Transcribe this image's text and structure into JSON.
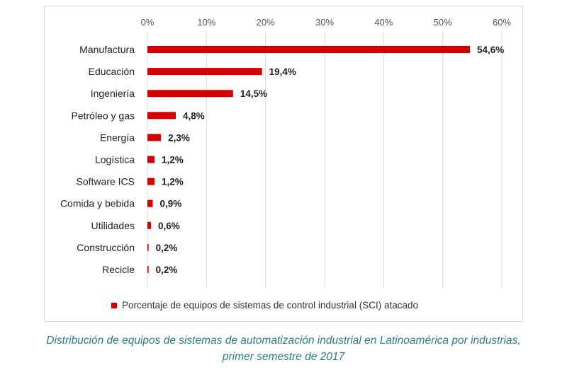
{
  "chart_data": {
    "type": "bar",
    "orientation": "horizontal",
    "categories": [
      "Manufactura",
      "Educación",
      "Ingeniería",
      "Petróleo y gas",
      "Energía",
      "Logística",
      "Software ICS",
      "Comida y bebida",
      "Utilidades",
      "Construcción",
      "Recicle"
    ],
    "values": [
      54.6,
      19.4,
      14.5,
      4.8,
      2.3,
      1.2,
      1.2,
      0.9,
      0.6,
      0.2,
      0.2
    ],
    "value_labels": [
      "54,6%",
      "19,4%",
      "14,5%",
      "4,8%",
      "2,3%",
      "1,2%",
      "1,2%",
      "0,9%",
      "0,6%",
      "0,2%",
      "0,2%"
    ],
    "xlim": [
      0,
      60
    ],
    "x_ticks": [
      "0%",
      "10%",
      "20%",
      "30%",
      "40%",
      "50%",
      "60%"
    ],
    "x_axis_position": "top",
    "grid": true,
    "legend": {
      "position": "bottom",
      "entries": [
        "Porcentaje de equipos de sistemas de control industrial (SCI) atacado"
      ]
    },
    "colors": {
      "bar": "#d20000",
      "grid": "#d9d9d9",
      "caption": "#2a7d86"
    }
  },
  "caption": {
    "line1": "Distribución de equipos de sistemas de automatización industrial en Latinoamérica por industrias,",
    "line2": "primer semestre de 2017"
  }
}
